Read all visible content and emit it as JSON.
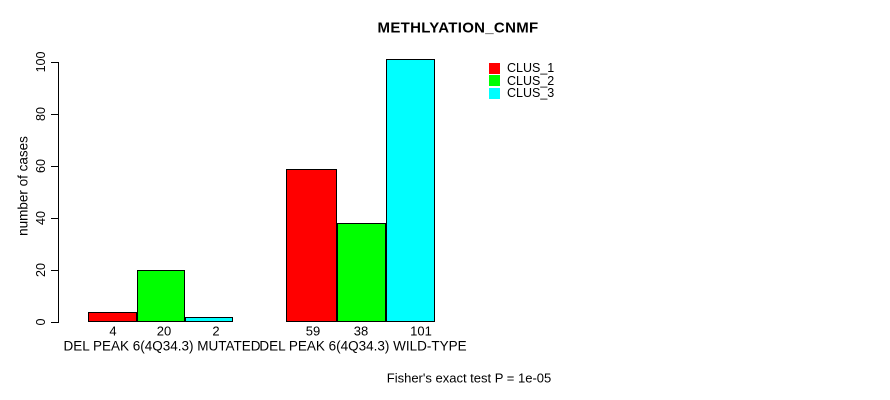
{
  "chart_data": {
    "type": "bar",
    "title": "METHLYATION_CNMF",
    "ylabel": "number of cases",
    "xlabel": "",
    "categories": [
      "DEL PEAK 6(4Q34.3) MUTATED",
      "DEL PEAK 6(4Q34.3) WILD-TYPE"
    ],
    "series": [
      {
        "name": "CLUS_1",
        "color": "#ff0000",
        "values": [
          4,
          59
        ]
      },
      {
        "name": "CLUS_2",
        "color": "#00ff00",
        "values": [
          20,
          38
        ]
      },
      {
        "name": "CLUS_3",
        "color": "#00ffff",
        "values": [
          2,
          101
        ]
      }
    ],
    "bar_value_labels": [
      [
        4,
        20,
        2
      ],
      [
        59,
        38,
        101
      ]
    ],
    "yticks": [
      0,
      20,
      40,
      60,
      80,
      100
    ],
    "ylim": [
      0,
      105
    ],
    "grid": false,
    "legend_position": "top-right",
    "bar_border_color": "#000000",
    "annotation": "Fisher's exact test P = 1e-05"
  }
}
